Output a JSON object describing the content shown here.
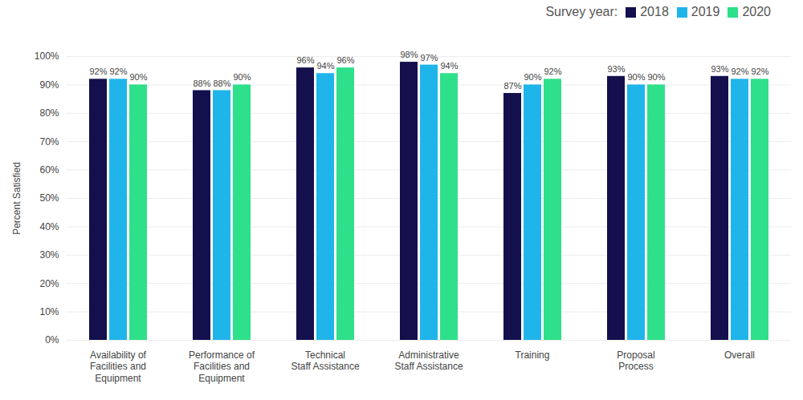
{
  "chart_data": {
    "type": "bar",
    "categories": [
      "Availability of\nFacilities and\nEquipment",
      "Performance of\nFacilities and\nEquipment",
      "Technical\nStaff Assistance",
      "Administrative\nStaff Assistance",
      "Training",
      "Proposal\nProcess",
      "Overall"
    ],
    "series": [
      {
        "name": "2018",
        "color": "#13104d",
        "values": [
          92,
          88,
          96,
          98,
          87,
          93,
          93
        ],
        "value_labels": [
          "92%",
          "88%",
          "96%",
          "98%",
          "87%",
          "93%",
          "93%"
        ]
      },
      {
        "name": "2019",
        "color": "#1fb5ea",
        "values": [
          92,
          88,
          94,
          97,
          90,
          90,
          92
        ],
        "value_labels": [
          "92%",
          "88%",
          "94%",
          "97%",
          "90%",
          "90%",
          "92%"
        ]
      },
      {
        "name": "2020",
        "color": "#2ee08a",
        "values": [
          90,
          90,
          96,
          94,
          92,
          90,
          92
        ],
        "value_labels": [
          "90%",
          "90%",
          "96%",
          "94%",
          "92%",
          "90%",
          "92%"
        ]
      }
    ],
    "y_label": "Percent Satisfied",
    "legend_title": "Survey year:",
    "legend": "top-right",
    "ylim": [
      0,
      100
    ],
    "yticks": [
      {
        "value": 0,
        "label": "0%"
      },
      {
        "value": 10,
        "label": "10%"
      },
      {
        "value": 20,
        "label": "20%"
      },
      {
        "value": 30,
        "label": "30%"
      },
      {
        "value": 40,
        "label": "40%"
      },
      {
        "value": 50,
        "label": "50%"
      },
      {
        "value": 60,
        "label": "60%"
      },
      {
        "value": 70,
        "label": "70%"
      },
      {
        "value": 80,
        "label": "80%"
      },
      {
        "value": 90,
        "label": "90%"
      },
      {
        "value": 100,
        "label": "100%"
      }
    ],
    "grid": true,
    "data_labels": true
  }
}
